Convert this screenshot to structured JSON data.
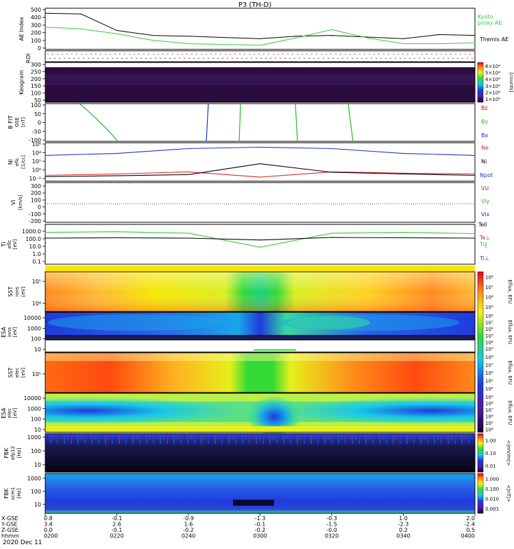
{
  "title": "P3 (TH-D)",
  "date": "2020 Dec 11",
  "colors": {
    "kyoto_ae": "#33cc33",
    "themis_ae": "#000000",
    "ne": "#dd2222",
    "ni": "#000000",
    "npot": "#1a33cc",
    "bz": "#cc0000",
    "by": "#22bb22",
    "bx": "#1133cc"
  },
  "panels": {
    "ae": {
      "ylabel": "AE Index",
      "unit": "",
      "ticks": [
        "500",
        "400",
        "300",
        "200",
        "100",
        "0"
      ],
      "legend": [
        "Kyoto",
        "proxy AE",
        "Themis AE"
      ]
    },
    "roi": {
      "ylabel": "ROI"
    },
    "keogram": {
      "ylabel": "Keogram",
      "ticks": [
        "300",
        "250",
        "200",
        "150",
        "100",
        "50"
      ],
      "cbar_ticks": [
        "6×10⁴",
        "5×10⁴",
        "4×10⁴",
        "3×10⁴",
        "2×10⁴",
        "1×10⁴"
      ],
      "cbar_label": "[counts]"
    },
    "bfit": {
      "ylabel": "B FIT",
      "ylabel2": "GSE",
      "unit": "[nT]",
      "ticks": [
        "100",
        "50",
        "0",
        "-50",
        "-100"
      ],
      "legend": [
        "Bz",
        "By",
        "Bx"
      ]
    },
    "density": {
      "ylabel": "Ni",
      "ylabel2": "eflc",
      "unit": "[1/cc]",
      "ticks": [
        "10⁶",
        "10⁴",
        "10²",
        "10⁰",
        "10⁻²"
      ],
      "legend": [
        "Ne",
        "Ni",
        "Npot"
      ]
    },
    "velocity": {
      "ylabel": "Vi",
      "unit": "[km/s]",
      "ticks": [
        "300",
        "200",
        "100",
        "0",
        "-100",
        "-200"
      ],
      "legend": [
        "Viz",
        "Viy",
        "Vix",
        "Tell"
      ]
    },
    "temp": {
      "ylabel": "Ti",
      "ylabel2": "eflc",
      "unit": "[eV]",
      "ticks": [
        "1000.0",
        "100.0",
        "10.0",
        "1.0",
        "0.1"
      ],
      "legend": [
        "Te⊥",
        "Ti∥",
        "Ti⊥"
      ]
    },
    "sst_i": {
      "ylabel": "SST",
      "ylabel2": "ions",
      "unit": "[eV]",
      "ticks": [
        "10⁵",
        "10⁴"
      ],
      "cbar_ticks": [
        "10⁸",
        "10⁷",
        "10⁶",
        "10⁵"
      ],
      "cbar_label": "Eflux, EFU"
    },
    "esa_i": {
      "ylabel": "ESA",
      "ylabel2": "ions",
      "unit": "[eV]",
      "ticks": [
        "10000",
        "1000",
        "100",
        "10"
      ],
      "cbar_ticks": [
        "10⁸",
        "10⁷",
        "10⁶",
        "10⁵",
        "10⁴",
        "10³"
      ],
      "cbar_label": "Eflux, EFU"
    },
    "sst_e": {
      "ylabel": "SST",
      "ylabel2": "elec",
      "unit": "[eV]",
      "ticks": [
        "10⁵"
      ],
      "cbar_ticks": [
        "10⁸",
        "10⁷",
        "10⁶",
        "10⁵",
        "10⁴"
      ],
      "cbar_label": "Eflux, EFU"
    },
    "esa_e": {
      "ylabel": "ESA",
      "ylabel2": "elec",
      "unit": "[eV]",
      "ticks": [
        "10000",
        "1000",
        "100",
        "10"
      ],
      "cbar_ticks": [
        "10⁹",
        "10⁸",
        "10⁷",
        "10⁶",
        "10⁵",
        "10⁴"
      ],
      "cbar_label": "Eflux, EFU"
    },
    "fbk_e": {
      "ylabel": "FBK",
      "ylabel2": "efp12",
      "unit": "[Hz]",
      "ticks": [
        "1000",
        "100",
        "10"
      ],
      "cbar_ticks": [
        "1.00",
        "0.10",
        "0.01"
      ],
      "cbar_label": "<|mV/m|>"
    },
    "fbk_b": {
      "ylabel": "FBK",
      "ylabel2": "scm1",
      "unit": "[Hz]",
      "ticks": [
        "1000",
        "100",
        "10"
      ],
      "cbar_ticks": [
        "1.000",
        "0.100",
        "0.010",
        "0.001"
      ],
      "cbar_label": "<|nT|>"
    }
  },
  "axis": {
    "rows": [
      {
        "label": "X-GSE",
        "values": [
          "0.8",
          "-0.1",
          "-0.9",
          "-1.3",
          "-0.3",
          "1.0",
          "2.0"
        ]
      },
      {
        "label": "Y-GSE",
        "values": [
          "3.4",
          "2.6",
          "1.6",
          "-0.1",
          "-1.5",
          "-2.3",
          "-2.4"
        ]
      },
      {
        "label": "Z-GSE",
        "values": [
          "0.0",
          "-0.1",
          "-0.2",
          "-0.2",
          "-0.0",
          "0.2",
          "0.5"
        ]
      },
      {
        "label": "hhmm",
        "values": [
          "0200",
          "0220",
          "0240",
          "0300",
          "0320",
          "0340",
          "0400"
        ]
      }
    ]
  },
  "chart_data": [
    {
      "type": "line",
      "title": "P3 (TH-D)",
      "ylabel": "AE Index",
      "ylim": [
        0,
        500
      ],
      "x": [
        "0200",
        "0210",
        "0220",
        "0230",
        "0240",
        "0250",
        "0300",
        "0310",
        "0320",
        "0330",
        "0340",
        "0350",
        "0400"
      ],
      "series": [
        {
          "name": "Themis AE",
          "values": [
            440,
            430,
            230,
            170,
            160,
            145,
            130,
            160,
            170,
            150,
            130,
            180,
            170
          ]
        },
        {
          "name": "Kyoto proxy AE",
          "values": [
            270,
            250,
            190,
            110,
            70,
            60,
            50,
            140,
            240,
            140,
            70,
            70,
            80
          ]
        }
      ]
    },
    {
      "type": "line",
      "ylabel": "Ni",
      "scale": "log",
      "ylim": [
        0.01,
        1000000
      ],
      "x": [
        "0200",
        "0220",
        "0240",
        "0300",
        "0320",
        "0340",
        "0400"
      ],
      "series": [
        {
          "name": "Ne",
          "values": [
            0.1,
            0.2,
            0.6,
            0.04,
            0.6,
            0.3,
            0.2
          ]
        },
        {
          "name": "Ni",
          "values": [
            0.05,
            0.08,
            0.15,
            40,
            0.5,
            0.2,
            0.1
          ]
        },
        {
          "name": "Npot",
          "values": [
            3000,
            8000,
            100000,
            200000,
            100000,
            8000,
            3000
          ]
        }
      ]
    },
    {
      "type": "line",
      "ylabel": "Ti",
      "scale": "log",
      "ylim": [
        0.1,
        1000
      ],
      "x": [
        "0200",
        "0220",
        "0240",
        "0300",
        "0320",
        "0340",
        "0400"
      ],
      "series": [
        {
          "name": "Ti∥",
          "values": [
            500,
            600,
            400,
            8,
            400,
            500,
            350
          ]
        },
        {
          "name": "Te⊥",
          "values": [
            100,
            110,
            100,
            60,
            120,
            110,
            100
          ]
        }
      ]
    }
  ]
}
